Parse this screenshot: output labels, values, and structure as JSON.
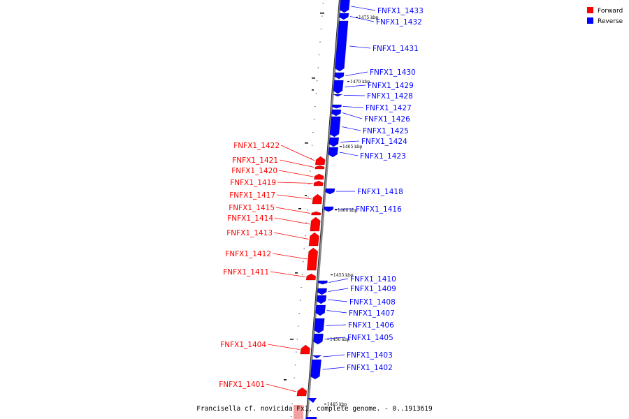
{
  "caption": "Francisella cf. novicida Fx1, complete genome. - 0..1913619",
  "legend": [
    {
      "label": "Forward",
      "color": "#ff0000"
    },
    {
      "label": "Reverse",
      "color": "#0000ff"
    }
  ],
  "colors": {
    "forward": "#ff0000",
    "reverse": "#0000ff",
    "backbone": "#8c8c8c",
    "forward_faded": "#f4a0a0"
  },
  "scale_labels": [
    "1475 kbp",
    "1470 kbp",
    "1465 kbp",
    "1460 kbp",
    "1455 kbp",
    "1450 kbp",
    "1445 kbp"
  ],
  "genes": {
    "reverse": [
      "FNFX1_1433",
      "FNFX1_1432",
      "FNFX1_1431",
      "FNFX1_1430",
      "FNFX1_1429",
      "FNFX1_1428",
      "FNFX1_1427",
      "FNFX1_1426",
      "FNFX1_1425",
      "FNFX1_1424",
      "FNFX1_1423",
      "FNFX1_1418",
      "FNFX1_1416",
      "FNFX1_1410",
      "FNFX1_1409",
      "FNFX1_1408",
      "FNFX1_1407",
      "FNFX1_1406",
      "FNFX1_1405",
      "FNFX1_1403",
      "FNFX1_1402"
    ],
    "forward": [
      "FNFX1_1422",
      "FNFX1_1421",
      "FNFX1_1420",
      "FNFX1_1419",
      "FNFX1_1417",
      "FNFX1_1415",
      "FNFX1_1414",
      "FNFX1_1413",
      "FNFX1_1412",
      "FNFX1_1411",
      "FNFX1_1404",
      "FNFX1_1401"
    ]
  }
}
